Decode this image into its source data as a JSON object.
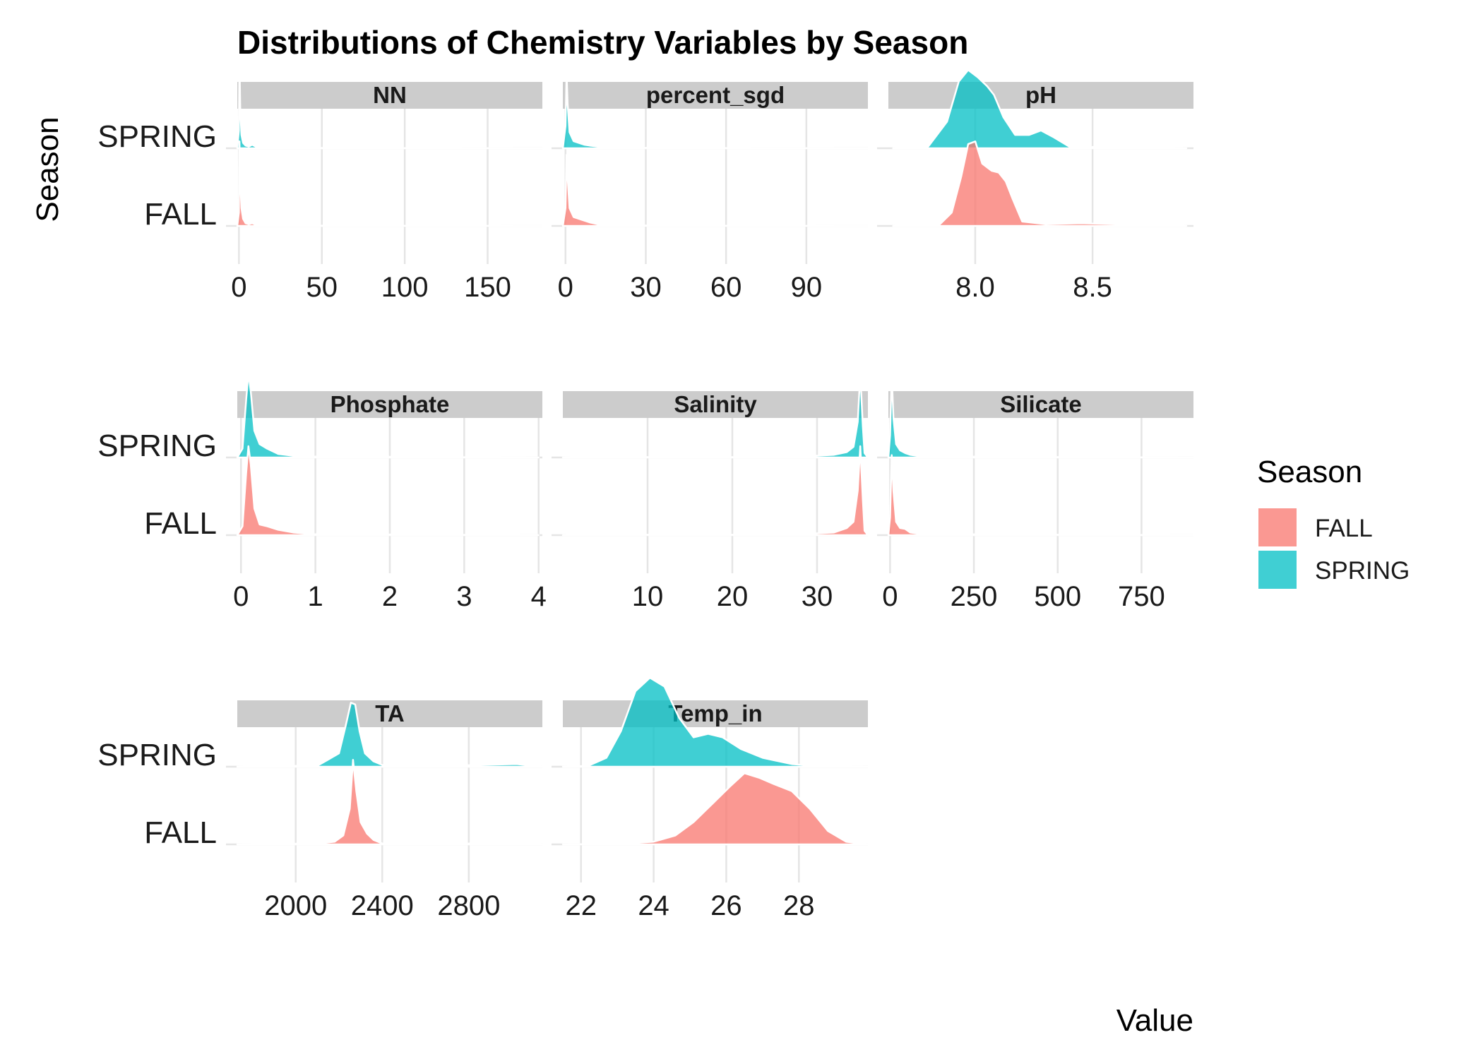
{
  "chart_data": {
    "type": "ridgeline",
    "title": "Distributions of Chemistry Variables by Season",
    "xlabel": "Value",
    "ylabel": "Season",
    "y_categories": [
      "FALL",
      "SPRING"
    ],
    "legend": {
      "title": "Season",
      "position": "right",
      "entries": [
        {
          "name": "FALL",
          "color": "#F8766D"
        },
        {
          "name": "SPRING",
          "color": "#00BFC4"
        }
      ]
    },
    "fill_opacity": 0.75,
    "grid": true,
    "facets": [
      {
        "name": "NN",
        "xlim": [
          -1,
          183
        ],
        "ticks": [
          0,
          50,
          100,
          150
        ],
        "tick_labels": [
          "0",
          "50",
          "100",
          "150"
        ],
        "series": [
          {
            "name": "FALL",
            "x": [
              -1,
              0,
              0.3,
              0.8,
              1.5,
              2.5,
              4,
              6,
              8,
              10,
              15,
              25,
              40,
              100,
              183
            ],
            "density": [
              0,
              0.15,
              0.95,
              0.5,
              0.2,
              0.08,
              0.03,
              0.02,
              0.03,
              0.015,
              0.01,
              0.005,
              0.003,
              0.002,
              0
            ]
          },
          {
            "name": "SPRING",
            "x": [
              -1,
              0,
              0.3,
              0.8,
              1.5,
              2.5,
              4,
              6,
              8,
              10,
              15,
              25,
              40,
              100,
              183
            ],
            "density": [
              0,
              0.2,
              1.0,
              0.45,
              0.15,
              0.06,
              0.03,
              0.02,
              0.04,
              0.02,
              0.01,
              0.005,
              0.003,
              0.002,
              0
            ]
          }
        ]
      },
      {
        "name": "percent_sgd",
        "xlim": [
          -1,
          113
        ],
        "ticks": [
          0,
          30,
          60,
          90
        ],
        "tick_labels": [
          "0",
          "30",
          "60",
          "90"
        ],
        "series": [
          {
            "name": "FALL",
            "x": [
              -1,
              0,
              0.4,
              0.8,
              1.5,
              3,
              5,
              7,
              9,
              12,
              15,
              20,
              30,
              60,
              113
            ],
            "density": [
              0,
              0.2,
              0.8,
              0.55,
              0.2,
              0.1,
              0.08,
              0.06,
              0.04,
              0.02,
              0.01,
              0.01,
              0.005,
              0.002,
              0
            ]
          },
          {
            "name": "SPRING",
            "x": [
              -1,
              0,
              0.4,
              0.8,
              1.5,
              3,
              5,
              7,
              9,
              12,
              15,
              20,
              30,
              60,
              113
            ],
            "density": [
              0,
              0.25,
              0.85,
              0.5,
              0.18,
              0.08,
              0.06,
              0.04,
              0.03,
              0.02,
              0.01,
              0.01,
              0.005,
              0.002,
              0
            ]
          }
        ]
      },
      {
        "name": "pH",
        "xlim": [
          7.63,
          8.93
        ],
        "ticks": [
          8.0,
          8.5
        ],
        "tick_labels": [
          "8.0",
          "8.5"
        ],
        "series": [
          {
            "name": "FALL",
            "x": [
              7.65,
              7.85,
              7.9,
              7.94,
              7.97,
              8.0,
              8.03,
              8.07,
              8.1,
              8.13,
              8.16,
              8.2,
              8.3,
              8.45,
              8.6,
              8.9
            ],
            "density": [
              0,
              0.02,
              0.15,
              0.55,
              0.92,
              0.95,
              0.7,
              0.62,
              0.6,
              0.5,
              0.3,
              0.05,
              0.02,
              0.03,
              0.02,
              0
            ]
          },
          {
            "name": "SPRING",
            "x": [
              7.65,
              7.8,
              7.88,
              7.93,
              7.97,
              8.01,
              8.05,
              8.08,
              8.12,
              8.17,
              8.23,
              8.28,
              8.33,
              8.4,
              8.6,
              8.9
            ],
            "density": [
              0,
              0.02,
              0.3,
              0.75,
              0.88,
              0.8,
              0.7,
              0.6,
              0.35,
              0.15,
              0.15,
              0.2,
              0.13,
              0.02,
              0.01,
              0
            ]
          }
        ]
      },
      {
        "name": "Phosphate",
        "xlim": [
          -0.05,
          4.05
        ],
        "ticks": [
          0,
          1,
          2,
          3,
          4
        ],
        "tick_labels": [
          "0",
          "1",
          "2",
          "3",
          "4"
        ],
        "series": [
          {
            "name": "FALL",
            "x": [
              -0.05,
              0.02,
              0.07,
              0.1,
              0.13,
              0.18,
              0.25,
              0.35,
              0.5,
              0.7,
              1.0,
              1.5,
              2.5,
              4.0
            ],
            "density": [
              0,
              0.1,
              0.7,
              1.0,
              0.8,
              0.3,
              0.12,
              0.1,
              0.06,
              0.03,
              0.01,
              0.01,
              0.005,
              0
            ]
          },
          {
            "name": "SPRING",
            "x": [
              -0.05,
              0.02,
              0.07,
              0.1,
              0.13,
              0.18,
              0.25,
              0.35,
              0.5,
              0.7,
              1.0,
              1.5,
              2.5,
              4.0
            ],
            "density": [
              0,
              0.1,
              0.65,
              0.95,
              0.75,
              0.3,
              0.15,
              0.1,
              0.04,
              0.02,
              0.01,
              0.01,
              0.005,
              0
            ]
          }
        ]
      },
      {
        "name": "Salinity",
        "xlim": [
          0,
          36
        ],
        "ticks": [
          10,
          20,
          30
        ],
        "tick_labels": [
          "10",
          "20",
          "30"
        ],
        "series": [
          {
            "name": "FALL",
            "x": [
              0,
              5,
              10,
              20,
              28,
              32,
              33.5,
              34.3,
              34.8,
              35.1,
              35.4,
              35.6,
              36
            ],
            "density": [
              0,
              0.01,
              0.005,
              0.005,
              0.01,
              0.03,
              0.08,
              0.15,
              0.5,
              1.0,
              0.4,
              0.05,
              0
            ]
          },
          {
            "name": "SPRING",
            "x": [
              0,
              5,
              10,
              20,
              28,
              32,
              33.5,
              34.3,
              34.8,
              35.1,
              35.4,
              35.6,
              36
            ],
            "density": [
              0,
              0.01,
              0.005,
              0.005,
              0.01,
              0.03,
              0.06,
              0.12,
              0.4,
              0.95,
              0.35,
              0.05,
              0
            ]
          }
        ]
      },
      {
        "name": "Silicate",
        "xlim": [
          -5,
          905
        ],
        "ticks": [
          0,
          250,
          500,
          750
        ],
        "tick_labels": [
          "0",
          "250",
          "500",
          "750"
        ],
        "series": [
          {
            "name": "FALL",
            "x": [
              -5,
              0,
              5,
              10,
              18,
              30,
              45,
              60,
              80,
              120,
              200,
              500,
              905
            ],
            "density": [
              0,
              0.2,
              0.9,
              0.5,
              0.15,
              0.08,
              0.07,
              0.03,
              0.02,
              0.01,
              0.01,
              0.005,
              0
            ]
          },
          {
            "name": "SPRING",
            "x": [
              -5,
              0,
              5,
              10,
              18,
              30,
              45,
              60,
              80,
              120,
              200,
              500,
              905
            ],
            "density": [
              0,
              0.25,
              0.95,
              0.45,
              0.15,
              0.08,
              0.05,
              0.03,
              0.02,
              0.01,
              0.01,
              0.005,
              0
            ]
          }
        ]
      },
      {
        "name": "TA",
        "xlim": [
          1730,
          3140
        ],
        "ticks": [
          2000,
          2400,
          2800
        ],
        "tick_labels": [
          "2000",
          "2400",
          "2800"
        ],
        "series": [
          {
            "name": "FALL",
            "x": [
              1730,
              1900,
              2100,
              2180,
              2220,
              2250,
              2265,
              2280,
              2300,
              2330,
              2360,
              2400,
              2700,
              3050,
              3140
            ],
            "density": [
              0,
              0.005,
              0.01,
              0.03,
              0.1,
              0.4,
              0.95,
              0.6,
              0.25,
              0.12,
              0.05,
              0.01,
              0.005,
              0.02,
              0
            ]
          },
          {
            "name": "SPRING",
            "x": [
              1730,
              1900,
              2100,
              2150,
              2200,
              2230,
              2255,
              2275,
              2295,
              2320,
              2360,
              2400,
              2700,
              3020,
              3140
            ],
            "density": [
              0,
              0.01,
              0.01,
              0.08,
              0.15,
              0.45,
              0.72,
              0.7,
              0.4,
              0.15,
              0.06,
              0.02,
              0.01,
              0.03,
              0
            ]
          }
        ]
      },
      {
        "name": "Temp_in",
        "xlim": [
          21.5,
          29.9
        ],
        "ticks": [
          22,
          24,
          26,
          28
        ],
        "tick_labels": [
          "22",
          "24",
          "26",
          "28"
        ],
        "series": [
          {
            "name": "FALL",
            "x": [
              21.5,
              23,
              24,
              24.6,
              25.1,
              25.6,
              26.1,
              26.5,
              26.9,
              27.3,
              27.8,
              28.3,
              28.8,
              29.3,
              29.9
            ],
            "density": [
              0,
              0.005,
              0.03,
              0.1,
              0.25,
              0.45,
              0.65,
              0.8,
              0.75,
              0.68,
              0.6,
              0.4,
              0.15,
              0.03,
              0
            ]
          },
          {
            "name": "SPRING",
            "x": [
              21.5,
              22.2,
              22.7,
              23.1,
              23.5,
              23.9,
              24.3,
              24.7,
              25.1,
              25.5,
              25.9,
              26.4,
              27,
              27.8,
              28.6,
              29.9
            ],
            "density": [
              0,
              0.01,
              0.1,
              0.4,
              0.85,
              1.0,
              0.9,
              0.55,
              0.33,
              0.37,
              0.33,
              0.2,
              0.1,
              0.03,
              0.005,
              0
            ]
          }
        ]
      }
    ]
  }
}
